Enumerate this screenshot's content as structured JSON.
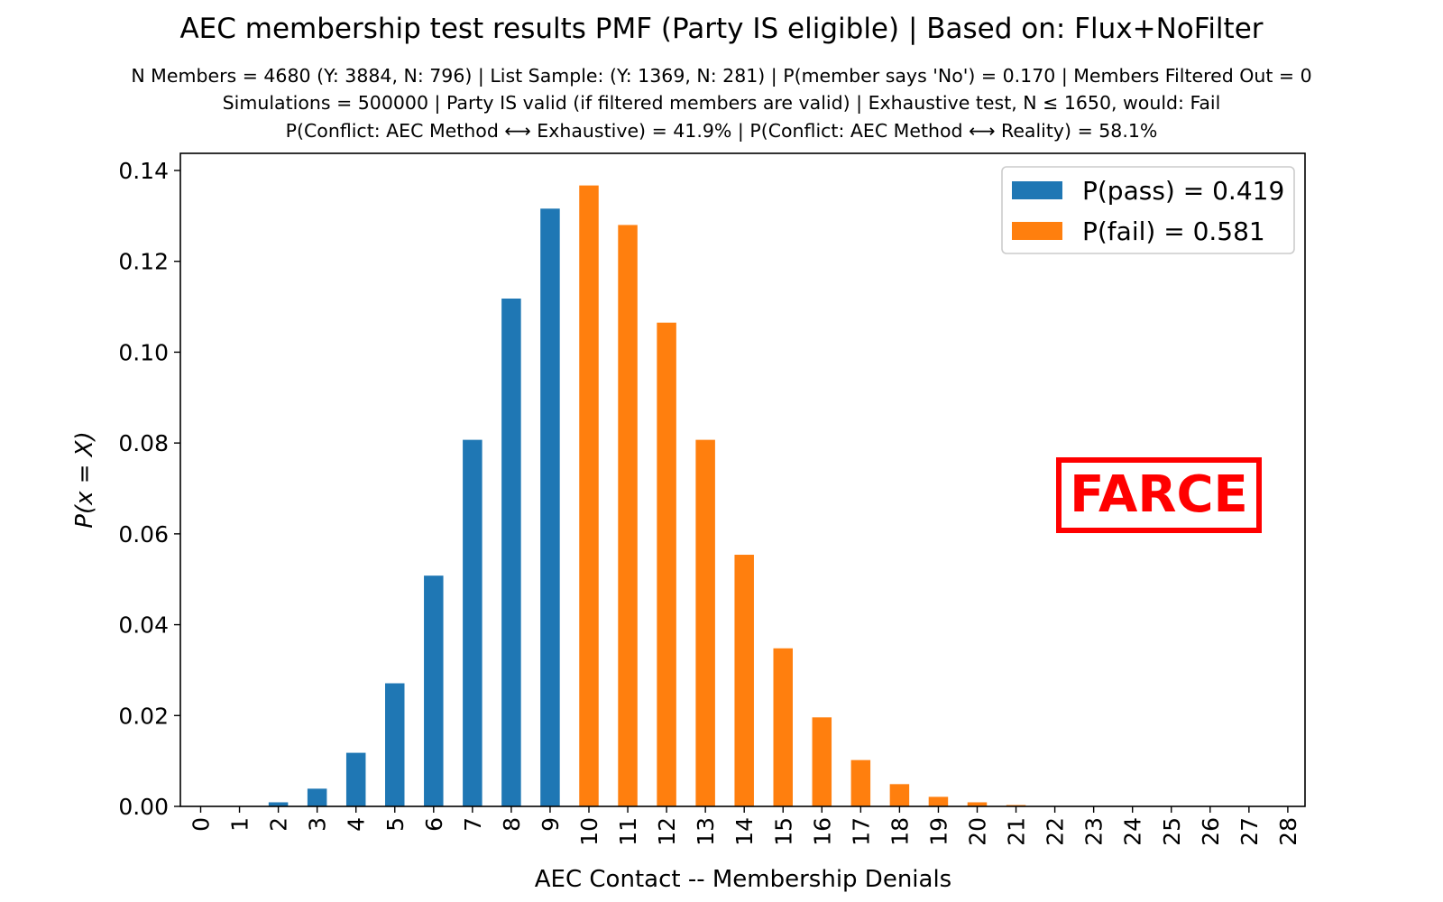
{
  "chart_data": {
    "type": "bar",
    "title": "AEC membership test results PMF (Party IS eligible) | Based on: Flux+NoFilter",
    "subtitle_lines": [
      "N Members = 4680 (Y: 3884, N: 796) | List Sample: (Y: 1369, N: 281) | P(member says 'No') = 0.170 | Members Filtered Out = 0",
      "Simulations = 500000 | Party IS valid (if filtered members are valid) | Exhaustive test, N ≤ 1650, would: Fail",
      "P(Conflict: AEC Method ⟷ Exhaustive) = 41.9% | P(Conflict: AEC Method ⟷ Reality) = 58.1%"
    ],
    "xlabel": "AEC Contact -- Membership Denials",
    "ylabel": "P(x = X)",
    "ylim": [
      0,
      0.14
    ],
    "yticks": [
      "0.00",
      "0.02",
      "0.04",
      "0.06",
      "0.08",
      "0.10",
      "0.12",
      "0.14"
    ],
    "categories": [
      "0",
      "1",
      "2",
      "3",
      "4",
      "5",
      "6",
      "7",
      "8",
      "9",
      "10",
      "11",
      "12",
      "13",
      "14",
      "15",
      "16",
      "17",
      "18",
      "19",
      "20",
      "21",
      "22",
      "23",
      "24",
      "25",
      "26",
      "27",
      "28"
    ],
    "values": [
      0.0,
      0.0001,
      0.0009,
      0.0039,
      0.0118,
      0.0271,
      0.0508,
      0.0807,
      0.1118,
      0.1316,
      0.1367,
      0.128,
      0.1065,
      0.0807,
      0.0554,
      0.0348,
      0.0196,
      0.0102,
      0.0049,
      0.0021,
      0.0009,
      0.0003,
      0.0001,
      0.0,
      0.0,
      0.0,
      0.0,
      0.0,
      0.0
    ],
    "pass_upto_category": "9",
    "series": [
      {
        "name": "P(pass) = 0.419",
        "color": "#1f77b4"
      },
      {
        "name": "P(fail) = 0.581",
        "color": "#ff7f0e"
      }
    ],
    "legend_position": "top-right",
    "grid": false,
    "annotation": {
      "text": "FARCE",
      "color": "#ff0000"
    }
  }
}
